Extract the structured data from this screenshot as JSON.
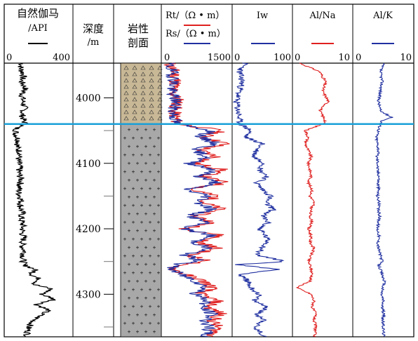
{
  "header": {
    "gr_title_line1": "自然伽马",
    "gr_title_line2": "/API",
    "depth_title_line1": "深度",
    "depth_title_line2": "/m",
    "lith_title_line1": "岩性",
    "lith_title_line2": "剖面",
    "rt_label": "Rt/（Ω • m）",
    "rs_label": "Rs/（Ω • m）",
    "iw_label": "Iw",
    "alna_label": "Al/Na",
    "alk_label": "Al/K"
  },
  "colors": {
    "gr": "#000000",
    "rt": "#e02020",
    "rs": "#2030a0",
    "iw": "#2030a0",
    "alna": "#e02020",
    "alk": "#2030a0",
    "boundary": "#1aa0d8",
    "sandstone": "#c8b896",
    "granite": "#a8a8a8"
  },
  "chart_data": {
    "type": "line",
    "depth_axis": {
      "label": "深度 /m",
      "range": [
        3947,
        4365
      ],
      "ticks": [
        4000,
        4100,
        4200,
        4300
      ]
    },
    "boundary_depth": 4040,
    "tracks": [
      {
        "name": "自然伽马 /API",
        "series": [
          "GR"
        ],
        "xlim": [
          0,
          400
        ],
        "tick_labels": [
          "0",
          "400"
        ]
      },
      {
        "name": "Rt / Rs",
        "series": [
          "Rt",
          "Rs"
        ],
        "xlim": [
          0,
          1500
        ],
        "tick_labels": [
          "0",
          "1500"
        ]
      },
      {
        "name": "Iw",
        "series": [
          "Iw"
        ],
        "xlim": [
          0,
          100
        ],
        "tick_labels": [
          "0",
          "100"
        ]
      },
      {
        "name": "Al/Na",
        "series": [
          "Al/Na"
        ],
        "xlim": [
          0,
          10
        ],
        "tick_labels": [
          "0",
          "10"
        ]
      },
      {
        "name": "Al/K",
        "series": [
          "Al/K"
        ],
        "xlim": [
          0,
          10
        ],
        "tick_labels": [
          "0",
          "10"
        ]
      }
    ],
    "series": [
      {
        "name": "GR",
        "depth": [
          3947,
          3955,
          3965,
          3975,
          3985,
          3995,
          4005,
          4015,
          4025,
          4035,
          4040,
          4045,
          4055,
          4065,
          4075,
          4085,
          4095,
          4105,
          4115,
          4125,
          4135,
          4145,
          4155,
          4165,
          4175,
          4185,
          4195,
          4205,
          4215,
          4225,
          4235,
          4245,
          4255,
          4262,
          4270,
          4278,
          4285,
          4292,
          4300,
          4308,
          4316,
          4324,
          4332,
          4340,
          4350,
          4365
        ],
        "values": [
          100,
          90,
          110,
          95,
          120,
          100,
          105,
          115,
          100,
          110,
          120,
          70,
          60,
          80,
          70,
          90,
          75,
          85,
          80,
          95,
          85,
          80,
          95,
          90,
          100,
          95,
          105,
          100,
          110,
          100,
          115,
          105,
          110,
          180,
          160,
          210,
          170,
          280,
          220,
          300,
          190,
          260,
          210,
          170,
          140,
          130
        ]
      },
      {
        "name": "Rt",
        "depth": [
          3947,
          3960,
          3975,
          3990,
          4005,
          4020,
          4035,
          4040,
          4050,
          4060,
          4070,
          4080,
          4090,
          4100,
          4110,
          4120,
          4130,
          4140,
          4150,
          4160,
          4170,
          4180,
          4190,
          4200,
          4210,
          4220,
          4230,
          4240,
          4250,
          4255,
          4262,
          4270,
          4280,
          4290,
          4300,
          4310,
          4320,
          4330,
          4340,
          4350,
          4365
        ],
        "values": [
          150,
          250,
          300,
          200,
          350,
          250,
          300,
          350,
          1300,
          900,
          1400,
          800,
          1200,
          700,
          1350,
          900,
          1400,
          600,
          1200,
          900,
          1300,
          700,
          1100,
          500,
          1300,
          800,
          1200,
          600,
          1000,
          300,
          250,
          500,
          900,
          1100,
          800,
          1200,
          1000,
          1300,
          1100,
          1200,
          1100
        ]
      },
      {
        "name": "Rs",
        "depth": [
          3947,
          3960,
          3975,
          3990,
          4005,
          4020,
          4035,
          4040,
          4050,
          4060,
          4070,
          4080,
          4090,
          4100,
          4110,
          4120,
          4130,
          4140,
          4150,
          4160,
          4170,
          4180,
          4190,
          4200,
          4210,
          4220,
          4230,
          4240,
          4250,
          4255,
          4262,
          4270,
          4280,
          4290,
          4300,
          4310,
          4320,
          4330,
          4340,
          4350,
          4365
        ],
        "values": [
          120,
          200,
          260,
          180,
          300,
          230,
          280,
          300,
          1100,
          800,
          1200,
          700,
          1000,
          600,
          1150,
          800,
          1200,
          500,
          1000,
          800,
          1100,
          600,
          950,
          450,
          1100,
          700,
          1000,
          500,
          850,
          250,
          200,
          400,
          750,
          950,
          700,
          1000,
          850,
          1100,
          950,
          1000,
          950
        ]
      },
      {
        "name": "Iw",
        "depth": [
          3947,
          3960,
          3975,
          3990,
          4005,
          4020,
          4035,
          4040,
          4050,
          4060,
          4070,
          4080,
          4090,
          4100,
          4110,
          4120,
          4130,
          4140,
          4150,
          4160,
          4170,
          4180,
          4190,
          4200,
          4210,
          4220,
          4230,
          4240,
          4250,
          4255,
          4262,
          4270,
          4280,
          4290,
          4300,
          4310,
          4320,
          4330,
          4340,
          4350,
          4365
        ],
        "values": [
          20,
          10,
          15,
          10,
          5,
          8,
          10,
          12,
          30,
          20,
          50,
          40,
          35,
          55,
          45,
          60,
          40,
          50,
          65,
          55,
          70,
          50,
          60,
          45,
          55,
          60,
          50,
          40,
          90,
          5,
          80,
          10,
          25,
          30,
          45,
          35,
          60,
          40,
          55,
          35,
          55
        ]
      },
      {
        "name": "Al/Na",
        "depth": [
          3947,
          3960,
          3975,
          3990,
          4005,
          4020,
          4035,
          4040,
          4050,
          4060,
          4070,
          4080,
          4090,
          4100,
          4110,
          4120,
          4130,
          4140,
          4150,
          4160,
          4170,
          4180,
          4190,
          4200,
          4210,
          4220,
          4230,
          4240,
          4250,
          4255,
          4262,
          4270,
          4280,
          4290,
          4300,
          4310,
          4320,
          4330,
          4340,
          4350,
          4365
        ],
        "values": [
          1.0,
          4.5,
          5.5,
          5.0,
          6.0,
          4.5,
          5.5,
          5.0,
          2.0,
          2.5,
          2.0,
          2.5,
          3.0,
          2.5,
          2.8,
          3.0,
          2.5,
          3.2,
          2.8,
          3.5,
          3.0,
          2.8,
          3.2,
          2.5,
          3.0,
          2.8,
          3.5,
          3.0,
          2.5,
          2.8,
          3.0,
          3.2,
          2.8,
          0.5,
          3.0,
          3.5,
          3.2,
          3.8,
          3.5,
          3.8,
          3.6
        ]
      },
      {
        "name": "Al/K",
        "depth": [
          3947,
          3960,
          3975,
          3990,
          4005,
          4020,
          4030,
          4035,
          4040,
          4050,
          4060,
          4070,
          4080,
          4090,
          4100,
          4110,
          4120,
          4130,
          4140,
          4150,
          4160,
          4170,
          4180,
          4190,
          4200,
          4210,
          4220,
          4230,
          4240,
          4250,
          4255,
          4262,
          4270,
          4280,
          4290,
          4300,
          4310,
          4320,
          4330,
          4340,
          4350,
          4365
        ],
        "values": [
          5.0,
          4.5,
          4.8,
          4.5,
          4.2,
          4.5,
          6.5,
          4.8,
          4.5,
          4.2,
          3.8,
          4.0,
          4.2,
          3.9,
          4.1,
          4.0,
          4.3,
          4.1,
          4.2,
          4.0,
          4.3,
          4.1,
          4.4,
          4.2,
          4.0,
          4.3,
          4.1,
          4.2,
          4.5,
          4.8,
          4.2,
          4.5,
          4.8,
          5.2,
          4.9,
          4.7,
          5.0,
          4.8,
          5.1,
          4.9,
          5.0,
          5.1
        ]
      }
    ],
    "lithology": [
      {
        "top": 3947,
        "bottom": 4040,
        "type": "sandstone"
      },
      {
        "top": 4040,
        "bottom": 4365,
        "type": "granite"
      }
    ]
  }
}
